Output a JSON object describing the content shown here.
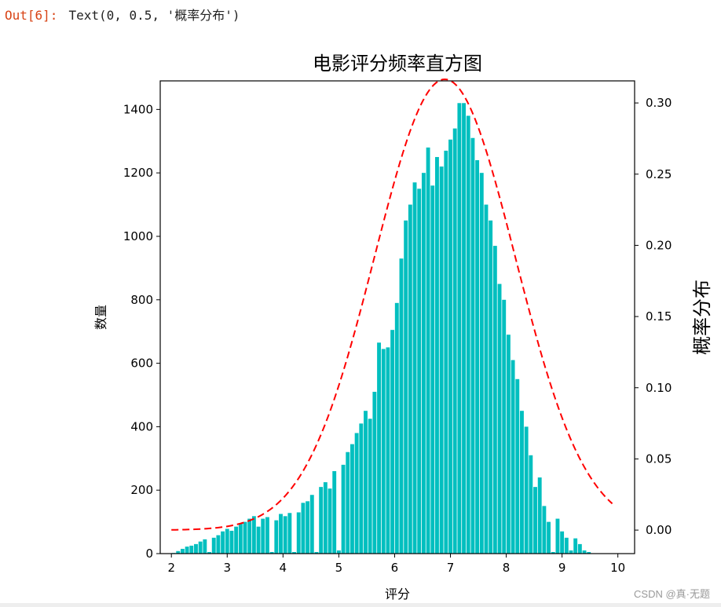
{
  "output": {
    "prompt": "Out[6]:",
    "text": "Text(0, 0.5, '概率分布')"
  },
  "watermark": "CSDN @真·无题",
  "chart_data": {
    "type": "bar",
    "title": "电影评分频率直方图",
    "xlabel": "评分",
    "ylabel": "数量",
    "y2label": "概率分布",
    "xlim": [
      1.8,
      10.3
    ],
    "ylim": [
      0,
      1490
    ],
    "y2lim": [
      -0.0165,
      0.3155
    ],
    "xticks": [
      "2",
      "3",
      "4",
      "5",
      "6",
      "7",
      "8",
      "9",
      "10"
    ],
    "yticks": [
      "0",
      "200",
      "400",
      "600",
      "800",
      "1000",
      "1200",
      "1400"
    ],
    "y2ticks": [
      "0.00",
      "0.05",
      "0.10",
      "0.15",
      "0.20",
      "0.25",
      "0.30"
    ],
    "bar_color": "#00bfbf",
    "curve_color": "#ff0000",
    "bins": {
      "start": 2.0,
      "width": 0.08,
      "values": [
        2,
        8,
        15,
        22,
        25,
        30,
        38,
        45,
        5,
        50,
        58,
        70,
        78,
        72,
        85,
        95,
        100,
        110,
        118,
        85,
        110,
        115,
        5,
        105,
        125,
        118,
        128,
        5,
        130,
        160,
        165,
        185,
        5,
        210,
        225,
        205,
        260,
        10,
        280,
        320,
        345,
        380,
        410,
        450,
        425,
        510,
        665,
        645,
        650,
        705,
        790,
        930,
        1050,
        1100,
        1170,
        1150,
        1200,
        1280,
        1160,
        1250,
        1220,
        1270,
        1305,
        1340,
        1420,
        1420,
        1380,
        1310,
        1240,
        1200,
        1100,
        1050,
        970,
        850,
        800,
        690,
        610,
        550,
        450,
        400,
        310,
        210,
        240,
        150,
        100,
        5,
        110,
        70,
        50,
        10,
        48,
        30,
        10,
        5
      ],
      "bin_label_step": 1
    },
    "normal_curve": {
      "mean": 6.9,
      "std": 1.26,
      "x_range": [
        2.0,
        9.9
      ],
      "style": "dashed"
    }
  }
}
